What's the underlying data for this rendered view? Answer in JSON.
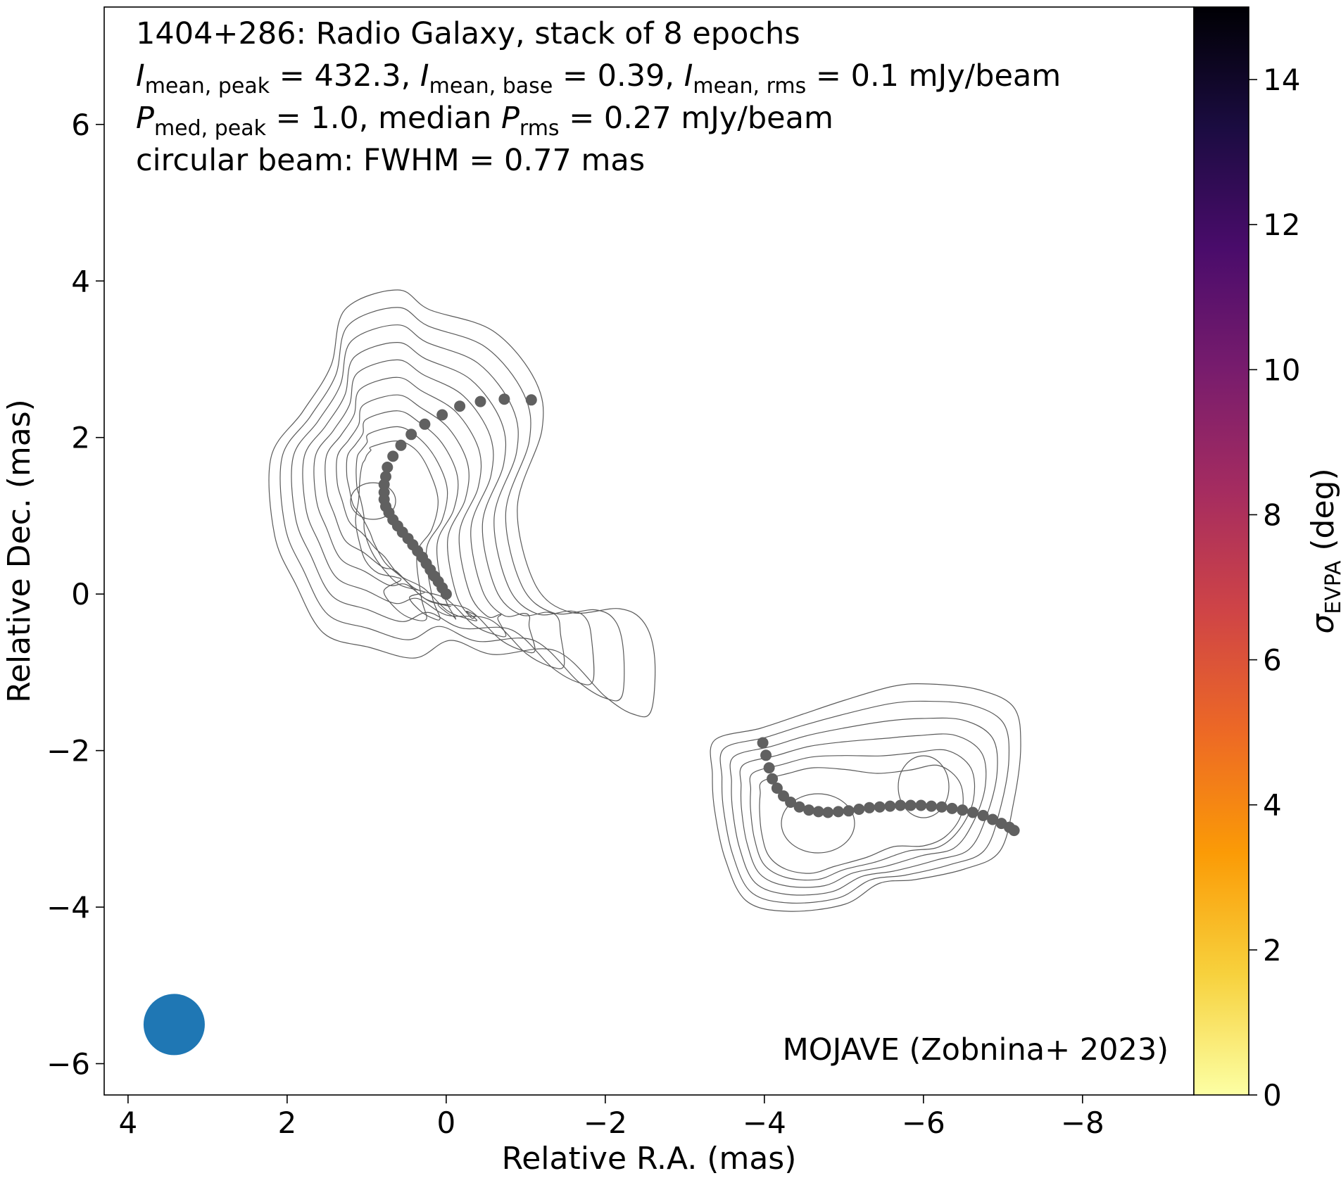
{
  "chart_data": {
    "type": "scatter",
    "title_lines": [
      {
        "plain": "1404+286: Radio Galaxy, stack of 8 epochs"
      },
      {
        "rich": [
          {
            "t": "I",
            "i": true
          },
          {
            "t": "mean, peak",
            "sub": true
          },
          {
            "t": " = 432.3, "
          },
          {
            "t": "I",
            "i": true
          },
          {
            "t": "mean, base",
            "sub": true
          },
          {
            "t": " = 0.39, "
          },
          {
            "t": "I",
            "i": true
          },
          {
            "t": "mean, rms",
            "sub": true
          },
          {
            "t": " = 0.1 mJy/beam"
          }
        ]
      },
      {
        "rich": [
          {
            "t": "P",
            "i": true
          },
          {
            "t": "med, peak",
            "sub": true
          },
          {
            "t": " = 1.0, median "
          },
          {
            "t": "P",
            "i": true
          },
          {
            "t": "rms",
            "sub": true
          },
          {
            "t": " = 0.27 mJy/beam"
          }
        ]
      },
      {
        "plain": "circular beam: FWHM = 0.77 mas"
      }
    ],
    "credit": "MOJAVE (Zobnina+ 2023)",
    "xlabel": "Relative R.A. (mas)",
    "ylabel": "Relative Dec. (mas)",
    "xlim": [
      4.3,
      -9.4
    ],
    "ylim": [
      -6.4,
      7.5
    ],
    "x_inverted": true,
    "xticks": [
      4,
      2,
      0,
      -2,
      -4,
      -6,
      -8
    ],
    "yticks": [
      -6,
      -4,
      -2,
      0,
      2,
      4,
      6
    ],
    "colorbar": {
      "label_symbol": "σ",
      "label_sub": "EVPA",
      "label_unit": " (deg)",
      "range": [
        0,
        15
      ],
      "ticks": [
        0,
        2,
        4,
        6,
        8,
        10,
        12,
        14
      ],
      "colormap": "inferno_r",
      "stops": [
        "#fcffa4",
        "#f7d13d",
        "#fb9b06",
        "#ed6925",
        "#cf4446",
        "#a52c60",
        "#781c6d",
        "#4a0c6b",
        "#1b0c41",
        "#000004"
      ]
    },
    "beam": {
      "x": 3.42,
      "y": -5.5,
      "fwhm_mas": 0.77,
      "color": "#1f77b4"
    },
    "ridgeline_color": "#606060",
    "contour_color": "#5a5a5a",
    "series": [
      {
        "points": [
          [
            0.0,
            0.0
          ],
          [
            0.05,
            0.08
          ],
          [
            0.1,
            0.16
          ],
          [
            0.15,
            0.23
          ],
          [
            0.2,
            0.31
          ],
          [
            0.25,
            0.39
          ],
          [
            0.3,
            0.47
          ],
          [
            0.36,
            0.55
          ],
          [
            0.42,
            0.63
          ],
          [
            0.48,
            0.71
          ],
          [
            0.55,
            0.79
          ],
          [
            0.61,
            0.87
          ],
          [
            0.67,
            0.95
          ],
          [
            0.72,
            1.04
          ],
          [
            0.76,
            1.12
          ],
          [
            0.78,
            1.21
          ],
          [
            0.78,
            1.3
          ],
          [
            0.78,
            1.4
          ],
          [
            0.76,
            1.5
          ],
          [
            0.74,
            1.62
          ],
          [
            0.67,
            1.76
          ],
          [
            0.57,
            1.9
          ],
          [
            0.44,
            2.04
          ],
          [
            0.27,
            2.17
          ],
          [
            0.05,
            2.29
          ],
          [
            -0.17,
            2.4
          ],
          [
            -0.43,
            2.46
          ],
          [
            -0.73,
            2.49
          ],
          [
            -1.07,
            2.48
          ]
        ]
      },
      {
        "points": [
          [
            -3.98,
            -1.9
          ],
          [
            -4.02,
            -2.06
          ],
          [
            -4.06,
            -2.22
          ],
          [
            -4.1,
            -2.36
          ],
          [
            -4.16,
            -2.48
          ],
          [
            -4.24,
            -2.58
          ],
          [
            -4.33,
            -2.66
          ],
          [
            -4.44,
            -2.72
          ],
          [
            -4.56,
            -2.76
          ],
          [
            -4.68,
            -2.78
          ],
          [
            -4.8,
            -2.79
          ],
          [
            -4.93,
            -2.78
          ],
          [
            -5.06,
            -2.77
          ],
          [
            -5.19,
            -2.75
          ],
          [
            -5.32,
            -2.73
          ],
          [
            -5.45,
            -2.72
          ],
          [
            -5.58,
            -2.71
          ],
          [
            -5.71,
            -2.7
          ],
          [
            -5.84,
            -2.7
          ],
          [
            -5.97,
            -2.7
          ],
          [
            -6.1,
            -2.71
          ],
          [
            -6.23,
            -2.72
          ],
          [
            -6.36,
            -2.74
          ],
          [
            -6.49,
            -2.76
          ],
          [
            -6.62,
            -2.79
          ],
          [
            -6.75,
            -2.83
          ],
          [
            -6.87,
            -2.88
          ],
          [
            -6.98,
            -2.93
          ],
          [
            -7.08,
            -2.98
          ],
          [
            -7.14,
            -3.02
          ]
        ]
      }
    ]
  }
}
